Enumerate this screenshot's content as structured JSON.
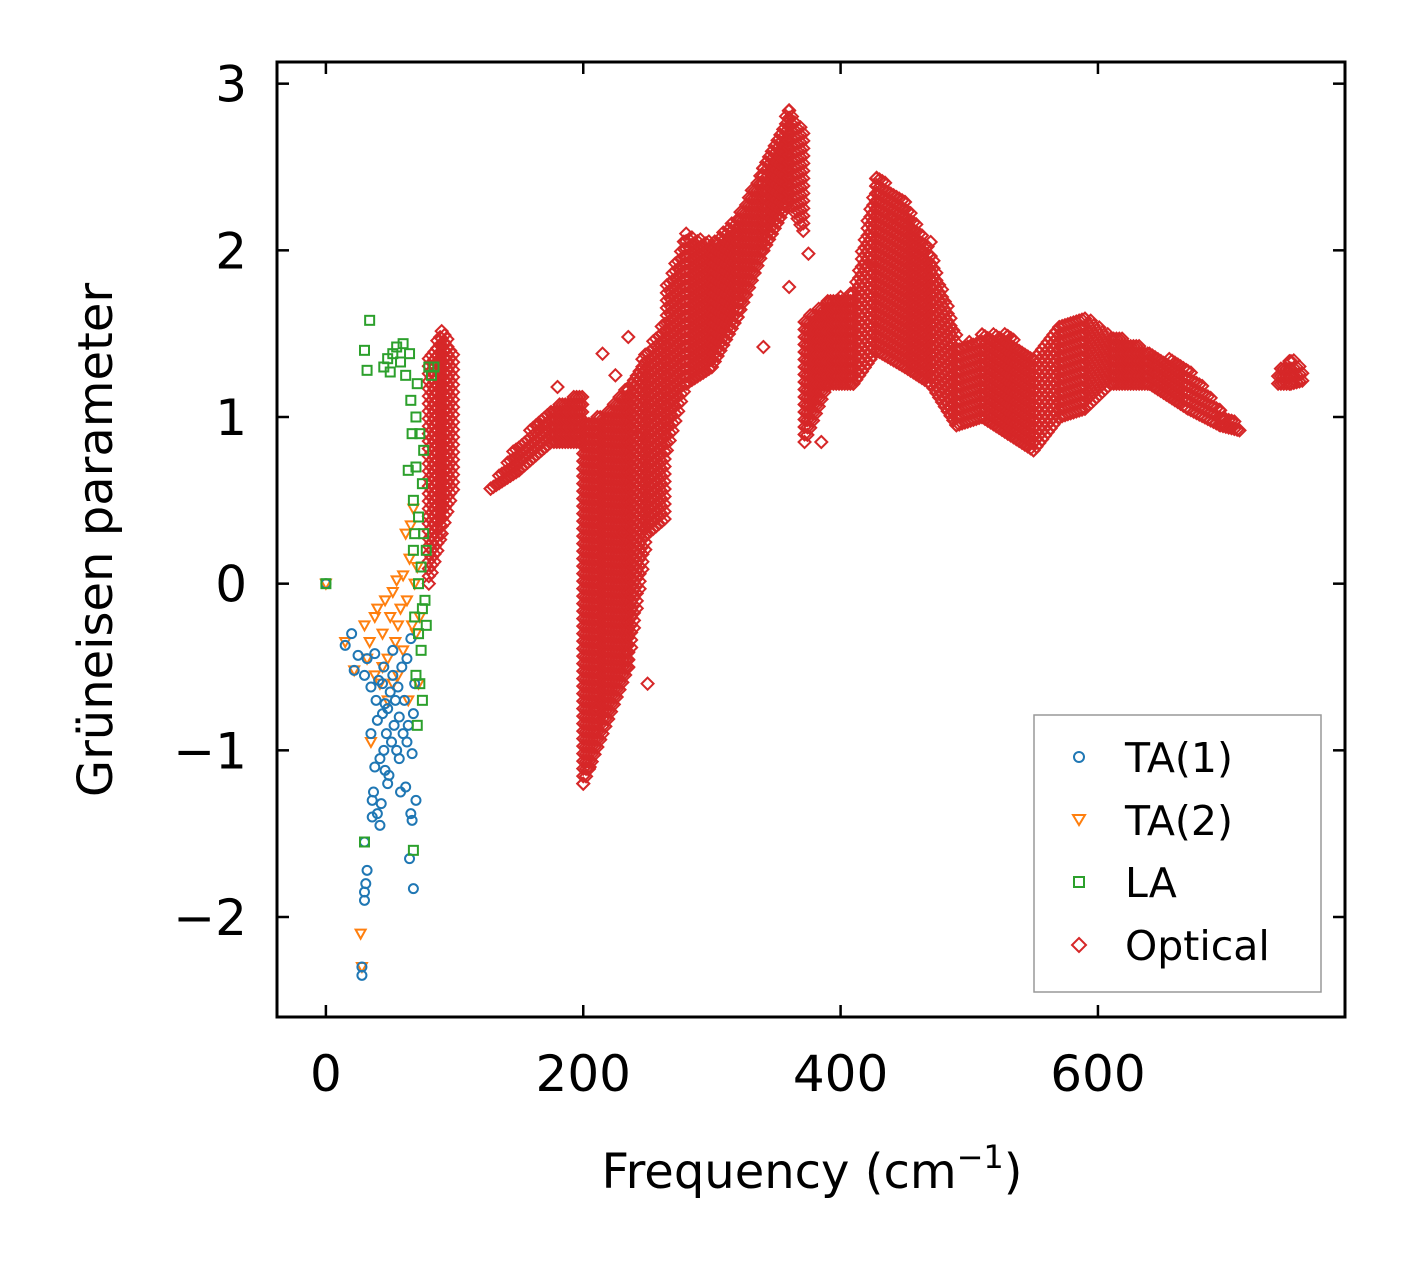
{
  "chart_data": {
    "type": "scatter",
    "xlabel": "Frequency (cm",
    "xlabel_superscript": "−1",
    "xlabel_close": ")",
    "ylabel": "Grüneisen parameter",
    "xlim": [
      -38,
      792
    ],
    "ylim": [
      -2.6,
      3.13
    ],
    "xticks": [
      0,
      200,
      400,
      600
    ],
    "xtick_labels": [
      "0",
      "200",
      "400",
      "600"
    ],
    "yticks": [
      -2,
      -1,
      0,
      1,
      2,
      3
    ],
    "ytick_labels": [
      "−2",
      "−1",
      "0",
      "1",
      "2",
      "3"
    ],
    "legend_position": "lower-right",
    "colors": {
      "ta1": "#1f77b4",
      "ta2": "#ff7f0e",
      "la": "#2ca02c",
      "optical": "#d62728"
    },
    "series": [
      {
        "key": "ta1",
        "name": "TA(1)",
        "marker": "circle",
        "points": [
          [
            0,
            0
          ],
          [
            15,
            -0.37
          ],
          [
            20,
            -0.3
          ],
          [
            22,
            -0.52
          ],
          [
            25,
            -0.43
          ],
          [
            28,
            -2.3
          ],
          [
            28,
            -2.35
          ],
          [
            30,
            -0.55
          ],
          [
            30,
            -1.55
          ],
          [
            30,
            -1.85
          ],
          [
            30,
            -1.9
          ],
          [
            31,
            -1.8
          ],
          [
            32,
            -1.72
          ],
          [
            32,
            -0.45
          ],
          [
            35,
            -0.62
          ],
          [
            35,
            -0.9
          ],
          [
            36,
            -1.3
          ],
          [
            36,
            -1.4
          ],
          [
            37,
            -1.25
          ],
          [
            38,
            -0.42
          ],
          [
            38,
            -1.1
          ],
          [
            39,
            -0.7
          ],
          [
            40,
            -1.38
          ],
          [
            40,
            -0.82
          ],
          [
            42,
            -1.05
          ],
          [
            42,
            -1.45
          ],
          [
            43,
            -1.32
          ],
          [
            44,
            -0.6
          ],
          [
            45,
            -0.5
          ],
          [
            45,
            -1.0
          ],
          [
            46,
            -1.12
          ],
          [
            47,
            -0.9
          ],
          [
            48,
            -0.75
          ],
          [
            49,
            -1.15
          ],
          [
            50,
            -0.65
          ],
          [
            51,
            -0.95
          ],
          [
            52,
            -0.55
          ],
          [
            53,
            -0.85
          ],
          [
            54,
            -0.7
          ],
          [
            55,
            -1.0
          ],
          [
            56,
            -0.62
          ],
          [
            57,
            -0.8
          ],
          [
            58,
            -1.25
          ],
          [
            59,
            -0.5
          ],
          [
            60,
            -0.9
          ],
          [
            61,
            -0.7
          ],
          [
            62,
            -1.22
          ],
          [
            63,
            -0.45
          ],
          [
            64,
            -0.85
          ],
          [
            65,
            -1.65
          ],
          [
            66,
            -0.33
          ],
          [
            66,
            -1.38
          ],
          [
            67,
            -1.02
          ],
          [
            67,
            -1.42
          ],
          [
            68,
            -0.78
          ],
          [
            68,
            -1.83
          ],
          [
            69,
            -0.6
          ],
          [
            70,
            -1.3
          ],
          [
            52,
            -0.4
          ],
          [
            46,
            -0.72
          ],
          [
            41,
            -0.58
          ],
          [
            57,
            -1.05
          ],
          [
            63,
            -0.95
          ],
          [
            48,
            -1.2
          ],
          [
            44,
            -0.78
          ]
        ]
      },
      {
        "key": "ta2",
        "name": "TA(2)",
        "marker": "triangle",
        "points": [
          [
            0,
            0
          ],
          [
            15,
            -0.35
          ],
          [
            22,
            -0.52
          ],
          [
            27,
            -2.1
          ],
          [
            28,
            -2.3
          ],
          [
            30,
            -0.25
          ],
          [
            32,
            -0.45
          ],
          [
            34,
            -0.35
          ],
          [
            35,
            -0.95
          ],
          [
            38,
            -0.2
          ],
          [
            40,
            -0.15
          ],
          [
            42,
            -0.6
          ],
          [
            44,
            -0.3
          ],
          [
            46,
            -0.1
          ],
          [
            48,
            -0.45
          ],
          [
            50,
            -0.2
          ],
          [
            52,
            -0.05
          ],
          [
            54,
            -0.35
          ],
          [
            55,
            0.02
          ],
          [
            56,
            -0.55
          ],
          [
            58,
            -0.15
          ],
          [
            60,
            0.05
          ],
          [
            60,
            -0.4
          ],
          [
            62,
            0.3
          ],
          [
            63,
            -0.1
          ],
          [
            64,
            -0.7
          ],
          [
            65,
            0.15
          ],
          [
            66,
            0.35
          ],
          [
            67,
            -0.25
          ],
          [
            68,
            0.45
          ],
          [
            69,
            0.0
          ],
          [
            70,
            -0.3
          ],
          [
            71,
            0.1
          ],
          [
            72,
            -0.6
          ],
          [
            73,
            -0.2
          ],
          [
            48,
            -0.7
          ],
          [
            52,
            -0.6
          ],
          [
            56,
            -0.25
          ],
          [
            44,
            -0.5
          ],
          [
            38,
            -0.55
          ]
        ]
      },
      {
        "key": "la",
        "name": "LA",
        "marker": "square",
        "points": [
          [
            0,
            0
          ],
          [
            30,
            -1.55
          ],
          [
            30,
            1.4
          ],
          [
            32,
            1.28
          ],
          [
            34,
            1.58
          ],
          [
            45,
            1.3
          ],
          [
            48,
            1.35
          ],
          [
            50,
            1.27
          ],
          [
            52,
            1.38
          ],
          [
            55,
            1.42
          ],
          [
            58,
            1.33
          ],
          [
            60,
            1.44
          ],
          [
            62,
            1.25
          ],
          [
            64,
            0.68
          ],
          [
            65,
            1.38
          ],
          [
            66,
            1.1
          ],
          [
            67,
            0.9
          ],
          [
            68,
            0.5
          ],
          [
            68,
            -1.6
          ],
          [
            68,
            0.2
          ],
          [
            69,
            -0.2
          ],
          [
            70,
            0.7
          ],
          [
            70,
            -0.55
          ],
          [
            71,
            1.2
          ],
          [
            71,
            -0.85
          ],
          [
            72,
            0.4
          ],
          [
            72,
            -0.3
          ],
          [
            73,
            0.9
          ],
          [
            73,
            -0.6
          ],
          [
            74,
            0.1
          ],
          [
            74,
            -0.4
          ],
          [
            75,
            0.6
          ],
          [
            75,
            -0.15
          ],
          [
            76,
            0.3
          ],
          [
            76,
            0.8
          ],
          [
            77,
            -0.1
          ],
          [
            78,
            0.2
          ],
          [
            80,
            1.3
          ],
          [
            82,
            1.25
          ],
          [
            84,
            1.3
          ],
          [
            70,
            1.0
          ],
          [
            69,
            0.3
          ],
          [
            72,
            0.0
          ],
          [
            75,
            -0.7
          ],
          [
            78,
            -0.25
          ]
        ]
      },
      {
        "key": "optical",
        "name": "Optical",
        "marker": "diamond",
        "bands": [
          [
            [
              80,
              0.0,
              1.35
            ],
            [
              90,
              0.3,
              1.52
            ],
            [
              100,
              0.6,
              1.4
            ]
          ],
          [
            [
              128,
              0.57,
              0.57
            ],
            [
              150,
              0.68,
              0.85
            ],
            [
              175,
              0.85,
              1.05
            ],
            [
              200,
              0.85,
              1.15
            ]
          ],
          [
            [
              200,
              -1.2,
              1.0
            ],
            [
              215,
              -0.9,
              1.0
            ],
            [
              235,
              -0.5,
              1.2
            ],
            [
              250,
              0.3,
              1.4
            ],
            [
              265,
              0.4,
              1.6
            ]
          ],
          [
            [
              265,
              0.8,
              1.8
            ],
            [
              280,
              1.2,
              2.1
            ],
            [
              300,
              1.3,
              2.05
            ],
            [
              320,
              1.6,
              2.2
            ],
            [
              340,
              2.0,
              2.5
            ],
            [
              360,
              2.3,
              2.85
            ],
            [
              372,
              2.1,
              2.7
            ]
          ],
          [
            [
              372,
              0.85,
              1.6
            ],
            [
              390,
              1.2,
              1.7
            ],
            [
              410,
              1.2,
              1.75
            ],
            [
              428,
              1.4,
              2.45
            ],
            [
              450,
              1.3,
              2.3
            ],
            [
              470,
              1.2,
              2.0
            ],
            [
              490,
              0.95,
              1.5
            ]
          ],
          [
            [
              490,
              0.95,
              1.4
            ],
            [
              510,
              1.0,
              1.5
            ],
            [
              530,
              0.9,
              1.5
            ],
            [
              550,
              0.8,
              1.35
            ],
            [
              570,
              1.0,
              1.55
            ],
            [
              590,
              1.05,
              1.6
            ],
            [
              610,
              1.2,
              1.5
            ],
            [
              640,
              1.2,
              1.4
            ],
            [
              670,
              1.05,
              1.3
            ],
            [
              695,
              0.95,
              1.05
            ],
            [
              710,
              0.92,
              0.95
            ]
          ],
          [
            [
              740,
              1.2,
              1.28
            ],
            [
              750,
              1.2,
              1.36
            ],
            [
              760,
              1.22,
              1.3
            ]
          ]
        ],
        "points": [
          [
            200,
            -1.2
          ],
          [
            205,
            -1.1
          ],
          [
            210,
            -0.75
          ],
          [
            215,
            1.38
          ],
          [
            225,
            1.25
          ],
          [
            235,
            1.48
          ],
          [
            245,
            0.9
          ],
          [
            255,
            1.05
          ],
          [
            320,
            2.1
          ],
          [
            340,
            1.42
          ],
          [
            375,
            1.98
          ],
          [
            385,
            0.85
          ],
          [
            360,
            1.78
          ],
          [
            400,
            1.72
          ],
          [
            420,
            1.9
          ],
          [
            440,
            2.2
          ],
          [
            470,
            2.05
          ],
          [
            500,
            1.45
          ],
          [
            700,
            0.95
          ],
          [
            710,
            0.92
          ],
          [
            128,
            0.57
          ],
          [
            165,
            0.95
          ],
          [
            180,
            1.18
          ],
          [
            230,
            0.3
          ],
          [
            250,
            -0.6
          ]
        ]
      }
    ]
  }
}
